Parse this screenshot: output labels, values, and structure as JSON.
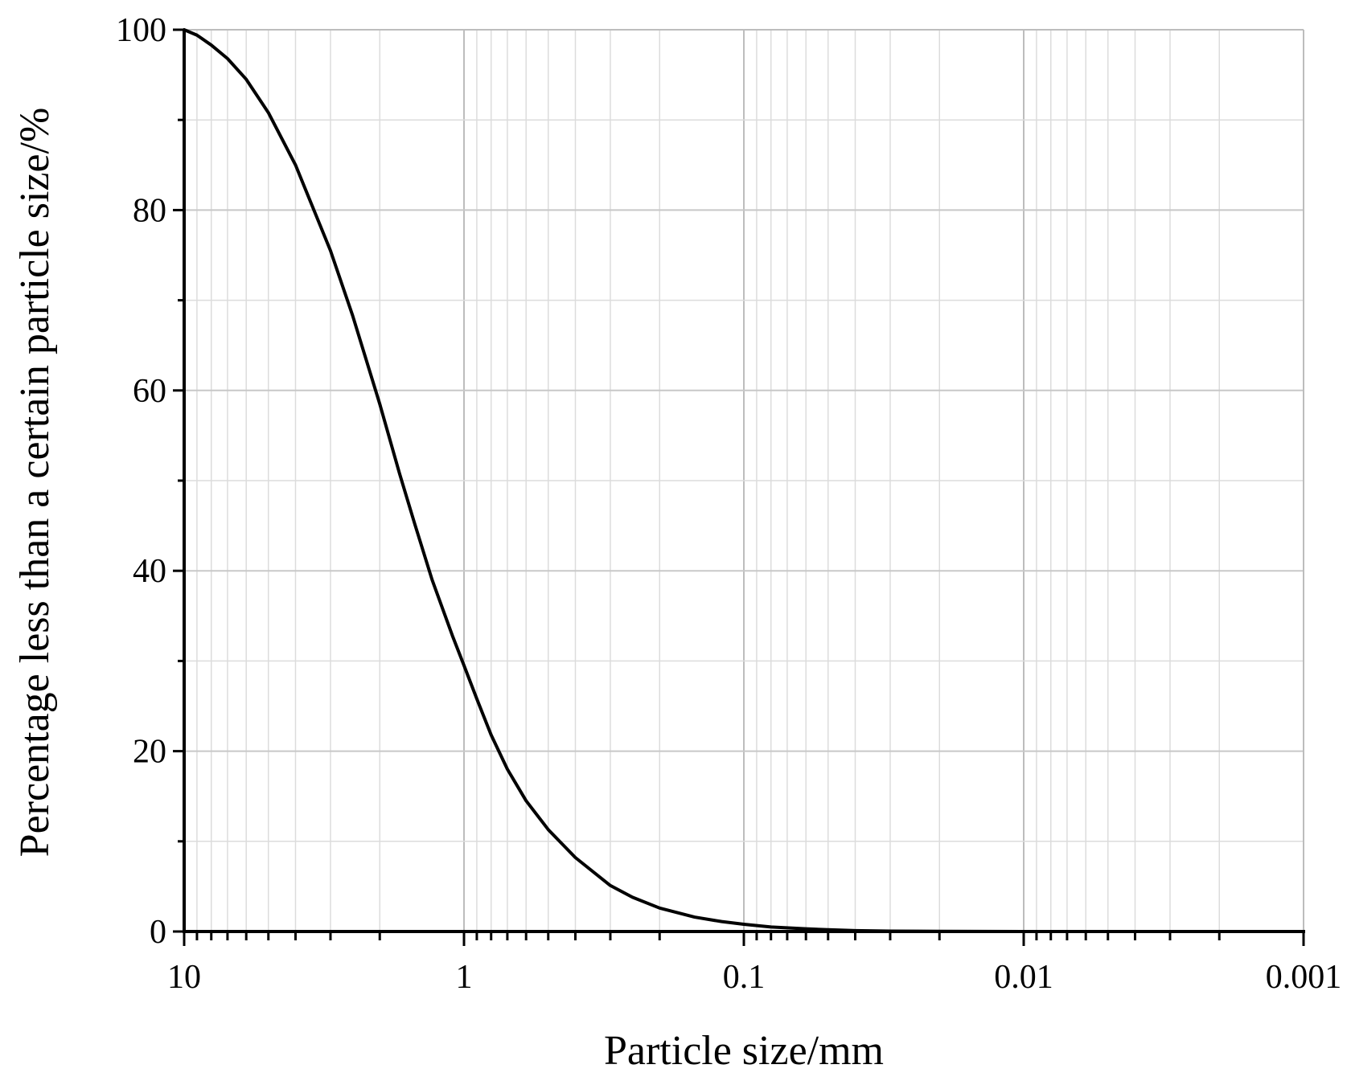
{
  "chart_data": {
    "type": "line",
    "title": "",
    "xlabel": "Particle size/mm",
    "ylabel": "Percentage less than a certain particle size/%",
    "x_scale": "log",
    "x_reversed": true,
    "xlim": [
      10,
      0.001
    ],
    "ylim": [
      0,
      100
    ],
    "grid": true,
    "legend": "none",
    "x_ticks": [
      10,
      1,
      0.1,
      0.01,
      0.001
    ],
    "x_tick_labels": [
      "10",
      "1",
      "0.1",
      "0.01",
      "0.001"
    ],
    "y_ticks": [
      0,
      20,
      40,
      60,
      80,
      100
    ],
    "y_tick_labels": [
      "0",
      "20",
      "40",
      "60",
      "80",
      "100"
    ],
    "series": [
      {
        "color": "#000000",
        "x": [
          10,
          9,
          8,
          7,
          6,
          5,
          4,
          3,
          2.5,
          2,
          1.7,
          1.5,
          1.3,
          1.1,
          1.0,
          0.9,
          0.8,
          0.7,
          0.6,
          0.5,
          0.4,
          0.3,
          0.25,
          0.2,
          0.15,
          0.12,
          0.1,
          0.08,
          0.06,
          0.05,
          0.04,
          0.03,
          0.02,
          0.01,
          0.005,
          0.001
        ],
        "y": [
          100,
          99.4,
          98.3,
          96.8,
          94.5,
          90.8,
          85.0,
          75.5,
          68.3,
          58.5,
          50.8,
          45.2,
          39.0,
          32.8,
          29.5,
          25.8,
          21.8,
          18.0,
          14.5,
          11.3,
          8.2,
          5.1,
          3.8,
          2.6,
          1.6,
          1.1,
          0.8,
          0.5,
          0.3,
          0.2,
          0.1,
          0.05,
          0.02,
          0.0,
          0.0,
          0.0
        ]
      }
    ]
  }
}
